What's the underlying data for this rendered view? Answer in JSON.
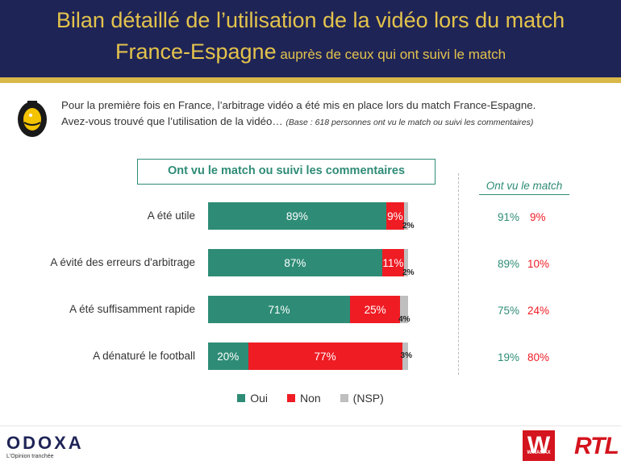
{
  "header": {
    "title_line1": "Bilan détaillé de l’utilisation de la vidéo lors du match",
    "title_line2_main": "France-Espagne",
    "title_line2_small": " auprès de ceux qui ont suivi le match"
  },
  "question": {
    "text_line1": "Pour la première fois en France, l’arbitrage vidéo a été mis en place lors du match France-Espagne.",
    "text_line2": "Avez-vous trouvé que l’utilisation de la vidéo… ",
    "base": "(Base : 618 personnes ont vu le match ou suivi les commentaires)"
  },
  "chart_title": "Ont vu le match ou suivi les commentaires",
  "side_title": "Ont vu le match",
  "colors": {
    "oui": "#2e8c76",
    "non": "#ef1c24",
    "nsp": "#bfbfbf",
    "header": "#1f2457",
    "gold": "#e3c34c"
  },
  "chart_data": {
    "type": "bar",
    "orientation": "horizontal",
    "stacked": true,
    "categories": [
      "A été utile",
      "A évité des erreurs d'arbitrage",
      "A été suffisamment rapide",
      "A dénaturé le football"
    ],
    "series": [
      {
        "name": "Oui",
        "values": [
          89,
          87,
          71,
          20
        ],
        "labels": [
          "89%",
          "87%",
          "71%",
          "20%"
        ]
      },
      {
        "name": "Non",
        "values": [
          9,
          11,
          25,
          77
        ],
        "labels": [
          "9%",
          "11%",
          "25%",
          "77%"
        ]
      },
      {
        "name": "(NSP)",
        "values": [
          2,
          2,
          4,
          3
        ],
        "labels": [
          "2%",
          "2%",
          "4%",
          "3%"
        ]
      }
    ],
    "xlim": [
      0,
      100
    ],
    "legend": "bottom",
    "side_series": {
      "title": "Ont vu le match",
      "oui": [
        "91%",
        "89%",
        "75%",
        "19%"
      ],
      "non": [
        "9%",
        "10%",
        "24%",
        "80%"
      ]
    }
  },
  "legend": {
    "oui": "Oui",
    "non": "Non",
    "nsp": "(NSP)"
  },
  "footer": {
    "odoxa": "ODOXA",
    "odoxa_tagline": "L'Opinion tranchée",
    "winamax": "W",
    "winamax_sub": "WINAMAX",
    "rtl": "RTL"
  }
}
